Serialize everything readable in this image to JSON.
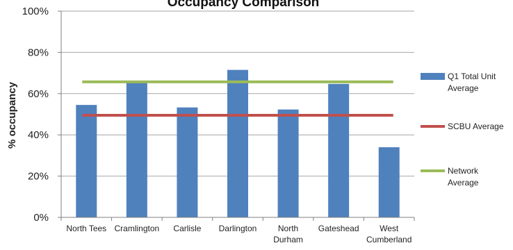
{
  "chart_data": {
    "type": "bar",
    "title": "Occupancy Comparison",
    "ylabel": "% occupancy",
    "xlabel": "",
    "ylim": [
      0,
      100
    ],
    "yticks": [
      0,
      20,
      40,
      60,
      80,
      100
    ],
    "ytick_suffix": "%",
    "grid": true,
    "legend_position": "right",
    "categories": [
      "North Tees",
      "Cramlington",
      "Carlisle",
      "Darlington",
      "North Durham",
      "Gateshead",
      "West Cumberland"
    ],
    "category_lines": [
      [
        "North Tees"
      ],
      [
        "Cramlington"
      ],
      [
        "Carlisle"
      ],
      [
        "Darlington"
      ],
      [
        "North",
        "Durham"
      ],
      [
        "Gateshead"
      ],
      [
        "West",
        "Cumberland"
      ]
    ],
    "series": [
      {
        "name": "Q1 Total Unit Average",
        "name_lines": [
          "Q1 Total Unit",
          "Average"
        ],
        "type": "bar",
        "color": "#4f81bd",
        "values": [
          54.5,
          65.5,
          53.3,
          71.5,
          52.3,
          64.7,
          34.0
        ]
      },
      {
        "name": "SCBU Average",
        "name_lines": [
          "SCBU Average"
        ],
        "type": "line",
        "color": "#c0504d",
        "values": [
          49.5,
          49.5,
          49.5,
          49.5,
          49.5,
          49.5,
          49.5
        ]
      },
      {
        "name": "Network Average",
        "name_lines": [
          "Network",
          "Average"
        ],
        "type": "line",
        "color": "#9bbb59",
        "values": [
          65.7,
          65.7,
          65.7,
          65.7,
          65.7,
          65.7,
          65.7
        ]
      }
    ]
  }
}
